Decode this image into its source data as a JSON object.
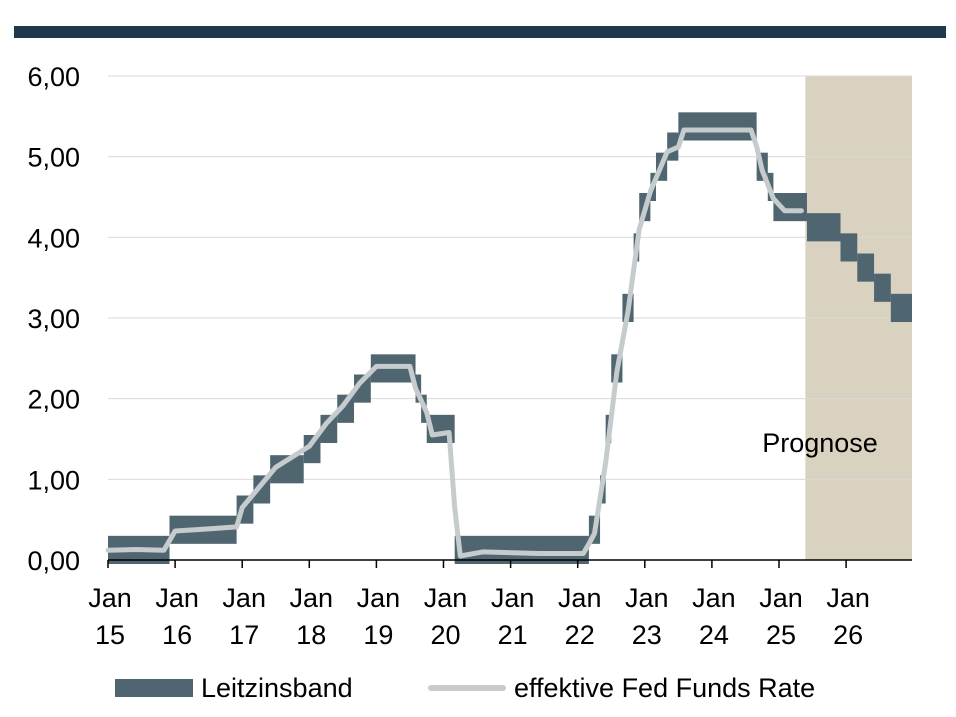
{
  "chart_data": {
    "type": "line",
    "ylim": [
      0,
      6
    ],
    "yticks": [
      "0,00",
      "1,00",
      "2,00",
      "3,00",
      "4,00",
      "5,00",
      "6,00"
    ],
    "xticks": [
      {
        "month": "Jan",
        "year": "15"
      },
      {
        "month": "Jan",
        "year": "16"
      },
      {
        "month": "Jan",
        "year": "17"
      },
      {
        "month": "Jan",
        "year": "18"
      },
      {
        "month": "Jan",
        "year": "19"
      },
      {
        "month": "Jan",
        "year": "20"
      },
      {
        "month": "Jan",
        "year": "21"
      },
      {
        "month": "Jan",
        "year": "22"
      },
      {
        "month": "Jan",
        "year": "23"
      },
      {
        "month": "Jan",
        "year": "24"
      },
      {
        "month": "Jan",
        "year": "25"
      },
      {
        "month": "Jan",
        "year": "26"
      }
    ],
    "forecast": {
      "label": "Prognose",
      "start": "2025-05",
      "end": "2026-12",
      "color": "#d9d2c0"
    },
    "series": [
      {
        "name": "Leitzinsband",
        "color": "#4f6670",
        "kind": "band",
        "points": [
          [
            "2015-01",
            0.0,
            0.25
          ],
          [
            "2015-12",
            0.25,
            0.5
          ],
          [
            "2016-12",
            0.5,
            0.75
          ],
          [
            "2017-03",
            0.75,
            1.0
          ],
          [
            "2017-06",
            1.0,
            1.25
          ],
          [
            "2017-12",
            1.25,
            1.5
          ],
          [
            "2018-03",
            1.5,
            1.75
          ],
          [
            "2018-06",
            1.75,
            2.0
          ],
          [
            "2018-09",
            2.0,
            2.25
          ],
          [
            "2018-12",
            2.25,
            2.5
          ],
          [
            "2019-08",
            2.0,
            2.25
          ],
          [
            "2019-09",
            1.75,
            2.0
          ],
          [
            "2019-10",
            1.5,
            1.75
          ],
          [
            "2020-03",
            0.0,
            0.25
          ],
          [
            "2022-03",
            0.25,
            0.5
          ],
          [
            "2022-05",
            0.75,
            1.0
          ],
          [
            "2022-06",
            1.5,
            1.75
          ],
          [
            "2022-07",
            2.25,
            2.5
          ],
          [
            "2022-09",
            3.0,
            3.25
          ],
          [
            "2022-11",
            3.75,
            4.0
          ],
          [
            "2022-12",
            4.25,
            4.5
          ],
          [
            "2023-02",
            4.5,
            4.75
          ],
          [
            "2023-03",
            4.75,
            5.0
          ],
          [
            "2023-05",
            5.0,
            5.25
          ],
          [
            "2023-07",
            5.25,
            5.5
          ],
          [
            "2024-09",
            4.75,
            5.0
          ],
          [
            "2024-11",
            4.5,
            4.75
          ],
          [
            "2024-12",
            4.25,
            4.5
          ],
          [
            "2025-06",
            4.0,
            4.25
          ],
          [
            "2025-12",
            3.75,
            4.0
          ],
          [
            "2026-03",
            3.5,
            3.75
          ],
          [
            "2026-06",
            3.25,
            3.5
          ],
          [
            "2026-09",
            3.0,
            3.25
          ],
          [
            "2026-12",
            3.0,
            3.25
          ]
        ]
      },
      {
        "name": "effektive Fed Funds Rate",
        "color": "#c6cbcd",
        "kind": "line",
        "points": [
          [
            "2015-01",
            0.12
          ],
          [
            "2015-06",
            0.13
          ],
          [
            "2015-11",
            0.12
          ],
          [
            "2016-01",
            0.36
          ],
          [
            "2016-06",
            0.38
          ],
          [
            "2016-12",
            0.41
          ],
          [
            "2017-01",
            0.65
          ],
          [
            "2017-04",
            0.9
          ],
          [
            "2017-07",
            1.15
          ],
          [
            "2018-01",
            1.41
          ],
          [
            "2018-04",
            1.69
          ],
          [
            "2018-07",
            1.91
          ],
          [
            "2018-10",
            2.19
          ],
          [
            "2019-01",
            2.4
          ],
          [
            "2019-07",
            2.4
          ],
          [
            "2019-08",
            2.13
          ],
          [
            "2019-10",
            1.83
          ],
          [
            "2019-11",
            1.55
          ],
          [
            "2020-02",
            1.58
          ],
          [
            "2020-03",
            0.65
          ],
          [
            "2020-04",
            0.05
          ],
          [
            "2020-08",
            0.1
          ],
          [
            "2021-06",
            0.08
          ],
          [
            "2022-02",
            0.08
          ],
          [
            "2022-03",
            0.2
          ],
          [
            "2022-04",
            0.33
          ],
          [
            "2022-06",
            1.21
          ],
          [
            "2022-08",
            2.33
          ],
          [
            "2022-10",
            3.08
          ],
          [
            "2022-12",
            4.1
          ],
          [
            "2023-02",
            4.57
          ],
          [
            "2023-05",
            5.06
          ],
          [
            "2023-07",
            5.12
          ],
          [
            "2023-08",
            5.33
          ],
          [
            "2024-08",
            5.33
          ],
          [
            "2024-09",
            5.13
          ],
          [
            "2024-10",
            4.83
          ],
          [
            "2024-12",
            4.48
          ],
          [
            "2025-02",
            4.33
          ],
          [
            "2025-05",
            4.33
          ]
        ]
      }
    ]
  }
}
